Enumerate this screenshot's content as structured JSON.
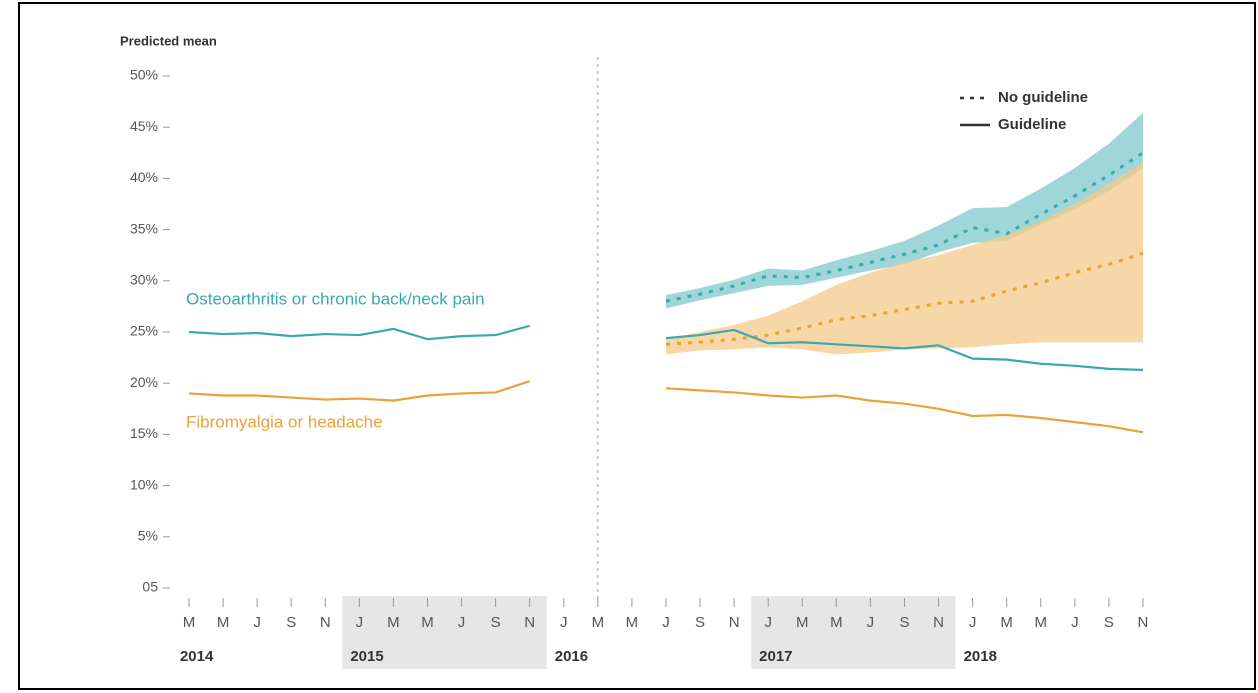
{
  "chart_data": {
    "type": "line",
    "y_label": "Predicted mean",
    "ylim": [
      0,
      50
    ],
    "yticks": [
      {
        "value": 0,
        "label": "05"
      },
      {
        "value": 5,
        "label": "5%"
      },
      {
        "value": 10,
        "label": "10%"
      },
      {
        "value": 15,
        "label": "15%"
      },
      {
        "value": 20,
        "label": "20%"
      },
      {
        "value": 25,
        "label": "25%"
      },
      {
        "value": 30,
        "label": "30%"
      },
      {
        "value": 35,
        "label": "35%"
      },
      {
        "value": 40,
        "label": "40%"
      },
      {
        "value": 45,
        "label": "45%"
      },
      {
        "value": 50,
        "label": "50%"
      }
    ],
    "categories": [
      "M",
      "M",
      "J",
      "S",
      "N",
      "J",
      "M",
      "M",
      "J",
      "S",
      "N",
      "J",
      "M",
      "M",
      "J",
      "S",
      "N",
      "J",
      "M",
      "M",
      "J",
      "S",
      "N",
      "J",
      "M",
      "M",
      "J",
      "S",
      "N"
    ],
    "year_groups": [
      {
        "year": "2014",
        "count": 5,
        "shaded": false
      },
      {
        "year": "2015",
        "count": 6,
        "shaded": true
      },
      {
        "year": "2016",
        "count": 6,
        "shaded": false
      },
      {
        "year": "2017",
        "count": 6,
        "shaded": true
      },
      {
        "year": "2018",
        "count": 6,
        "shaded": false
      }
    ],
    "reference_line_x": 12,
    "groups": [
      {
        "name": "Osteoarthritis or chronic back/neck pain",
        "color": "#3aa8b0",
        "band_color": "#7ec8cc"
      },
      {
        "name": "Fibromyalgia or headache",
        "color": "#e8a23a",
        "band_color": "#f4c98a"
      }
    ],
    "legend": [
      {
        "label": "No guideline",
        "style": "dotted"
      },
      {
        "label": "Guideline",
        "style": "solid"
      }
    ],
    "series": [
      {
        "group": 0,
        "legend": 0,
        "values": [
          null,
          null,
          null,
          null,
          null,
          null,
          null,
          null,
          null,
          null,
          null,
          null,
          null,
          null,
          28.0,
          28.7,
          29.5,
          30.5,
          30.3,
          31.0,
          31.8,
          32.6,
          33.5,
          35.2,
          34.6,
          36.5,
          38.3,
          40.3,
          42.5
        ],
        "lower": [
          null,
          null,
          null,
          null,
          null,
          null,
          null,
          null,
          null,
          null,
          null,
          null,
          null,
          null,
          27.3,
          28.1,
          28.8,
          29.5,
          29.6,
          30.3,
          31.0,
          31.6,
          32.8,
          33.7,
          33.9,
          35.5,
          37.0,
          38.8,
          41.0
        ],
        "upper": [
          null,
          null,
          null,
          null,
          null,
          null,
          null,
          null,
          null,
          null,
          null,
          null,
          null,
          null,
          28.6,
          29.3,
          30.1,
          31.2,
          31.0,
          32.0,
          32.9,
          33.9,
          35.4,
          37.1,
          37.2,
          39.0,
          41.0,
          43.4,
          46.4
        ]
      },
      {
        "group": 1,
        "legend": 0,
        "values": [
          null,
          null,
          null,
          null,
          null,
          null,
          null,
          null,
          null,
          null,
          null,
          null,
          null,
          null,
          23.8,
          24.0,
          24.3,
          24.7,
          25.4,
          26.2,
          26.6,
          27.2,
          27.8,
          28.0,
          29.0,
          29.8,
          30.8,
          31.6,
          32.7
        ],
        "lower": [
          null,
          null,
          null,
          null,
          null,
          null,
          null,
          null,
          null,
          null,
          null,
          null,
          null,
          null,
          22.8,
          23.2,
          23.3,
          23.5,
          23.3,
          22.8,
          23.0,
          23.3,
          23.4,
          23.5,
          23.8,
          24.0,
          24.0,
          24.0,
          24.0
        ],
        "upper": [
          null,
          null,
          null,
          null,
          null,
          null,
          null,
          null,
          null,
          null,
          null,
          null,
          null,
          null,
          24.3,
          25.0,
          25.7,
          26.6,
          28.0,
          29.6,
          30.8,
          31.8,
          32.5,
          33.5,
          34.5,
          35.8,
          37.5,
          39.5,
          41.6
        ]
      },
      {
        "group": 0,
        "legend": 1,
        "values": [
          25.0,
          24.8,
          24.9,
          24.6,
          24.8,
          24.7,
          25.3,
          24.3,
          24.6,
          24.7,
          25.6,
          null,
          null,
          null,
          24.4,
          24.7,
          25.2,
          23.9,
          24.0,
          23.8,
          23.6,
          23.4,
          23.7,
          22.4,
          22.3,
          21.9,
          21.7,
          21.4,
          21.3
        ]
      },
      {
        "group": 1,
        "legend": 1,
        "values": [
          19.0,
          18.8,
          18.8,
          18.6,
          18.4,
          18.5,
          18.3,
          18.8,
          19.0,
          19.1,
          20.2,
          null,
          null,
          null,
          19.5,
          19.3,
          19.1,
          18.8,
          18.6,
          18.8,
          18.3,
          18.0,
          17.5,
          16.8,
          16.9,
          16.6,
          16.2,
          15.8,
          15.2
        ]
      }
    ]
  }
}
